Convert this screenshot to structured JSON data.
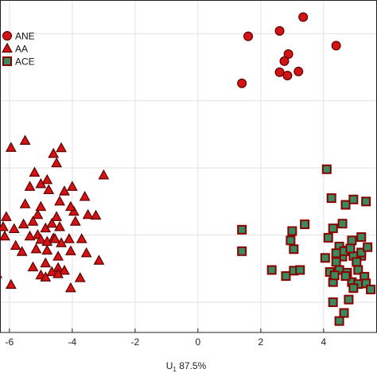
{
  "chart_data": {
    "type": "scatter",
    "title": "",
    "xlabel": {
      "base": "U",
      "subscript": "1",
      "suffix": "  87.5%"
    },
    "ylabel": "",
    "xlim": [
      -6.3,
      5.7
    ],
    "ylim": [
      -4.9,
      5.0
    ],
    "x_ticks": [
      -6,
      -4,
      -2,
      0,
      2,
      4
    ],
    "x_tick_labels": [
      "-6",
      "-4",
      "-2",
      "0",
      "2",
      "4"
    ],
    "y_grid_values": [
      4,
      2,
      0,
      -2,
      -4
    ],
    "grid": true,
    "legend": "top-left",
    "series": [
      {
        "name": "ANE",
        "marker": "circle",
        "fill": "#d41414",
        "stroke": "#5a0000",
        "points": [
          [
            3.35,
            4.49
          ],
          [
            1.6,
            3.92
          ],
          [
            2.6,
            4.08
          ],
          [
            4.4,
            3.64
          ],
          [
            2.88,
            3.39
          ],
          [
            2.75,
            3.18
          ],
          [
            2.6,
            2.85
          ],
          [
            2.85,
            2.75
          ],
          [
            3.2,
            2.87
          ],
          [
            1.4,
            2.52
          ]
        ]
      },
      {
        "name": "AA",
        "marker": "triangle",
        "fill": "#d41414",
        "stroke": "#5a0000",
        "points": [
          [
            -5.5,
            0.81
          ],
          [
            -4.35,
            0.59
          ],
          [
            -4.6,
            0.42
          ],
          [
            -5.95,
            0.6
          ],
          [
            -4.5,
            0.14
          ],
          [
            -5.2,
            -0.14
          ],
          [
            -3.0,
            -0.22
          ],
          [
            -4.0,
            -0.56
          ],
          [
            -5.0,
            -0.48
          ],
          [
            -4.8,
            -0.36
          ],
          [
            -3.6,
            -0.86
          ],
          [
            -4.25,
            -0.7
          ],
          [
            -4.75,
            -0.66
          ],
          [
            -5.35,
            -0.56
          ],
          [
            -4.4,
            -1.0
          ],
          [
            -6.1,
            -1.46
          ],
          [
            -5.1,
            -1.4
          ],
          [
            -4.5,
            -1.46
          ],
          [
            -3.95,
            -1.3
          ],
          [
            -3.5,
            -1.4
          ],
          [
            -3.25,
            -1.42
          ],
          [
            -4.05,
            -1.16
          ],
          [
            -5.0,
            -1.16
          ],
          [
            -5.5,
            -1.08
          ],
          [
            -4.85,
            -1.8
          ],
          [
            -5.25,
            -1.6
          ],
          [
            -5.55,
            -1.68
          ],
          [
            -4.65,
            -1.66
          ],
          [
            -4.4,
            -1.76
          ],
          [
            -3.9,
            -1.6
          ],
          [
            -5.85,
            -1.82
          ],
          [
            -6.2,
            -1.76
          ],
          [
            -5.1,
            -2.0
          ],
          [
            -4.6,
            -2.1
          ],
          [
            -5.8,
            -2.32
          ],
          [
            -5.35,
            -2.04
          ],
          [
            -5.0,
            -2.14
          ],
          [
            -4.8,
            -2.2
          ],
          [
            -4.55,
            -2.12
          ],
          [
            -4.35,
            -2.24
          ],
          [
            -4.1,
            -2.12
          ],
          [
            -3.7,
            -2.12
          ],
          [
            -6.15,
            -2.04
          ],
          [
            -5.6,
            -2.5
          ],
          [
            -5.15,
            -2.42
          ],
          [
            -4.8,
            -2.46
          ],
          [
            -4.45,
            -2.64
          ],
          [
            -4.05,
            -2.48
          ],
          [
            -3.55,
            -2.54
          ],
          [
            -3.15,
            -2.76
          ],
          [
            -4.85,
            -2.84
          ],
          [
            -4.45,
            -2.98
          ],
          [
            -5.0,
            -3.2
          ],
          [
            -4.65,
            -3.1
          ],
          [
            -4.25,
            -3.06
          ],
          [
            -3.75,
            -3.28
          ],
          [
            -6.4,
            -3.16
          ],
          [
            -5.95,
            -3.48
          ],
          [
            -4.85,
            -3.26
          ],
          [
            -4.05,
            -3.58
          ],
          [
            -5.25,
            -2.96
          ],
          [
            -4.45,
            -3.16
          ]
        ]
      },
      {
        "name": "ACE",
        "marker": "square",
        "fill": "#3a8a60",
        "stroke": "#8a0000",
        "points": [
          [
            1.4,
            -1.84
          ],
          [
            1.4,
            -2.48
          ],
          [
            2.35,
            -3.04
          ],
          [
            2.8,
            -3.22
          ],
          [
            3.05,
            -3.06
          ],
          [
            3.25,
            -3.04
          ],
          [
            3.05,
            -2.42
          ],
          [
            2.95,
            -2.16
          ],
          [
            3.0,
            -1.88
          ],
          [
            3.4,
            -1.68
          ],
          [
            4.3,
            -1.8
          ],
          [
            4.6,
            -1.66
          ],
          [
            4.75,
            -2.46
          ],
          [
            4.95,
            -2.62
          ],
          [
            4.6,
            -2.64
          ],
          [
            4.4,
            -2.8
          ],
          [
            4.2,
            -3.1
          ],
          [
            4.5,
            -3.04
          ],
          [
            4.75,
            -3.12
          ],
          [
            5.1,
            -3.04
          ],
          [
            5.3,
            -3.24
          ],
          [
            4.3,
            -3.4
          ],
          [
            4.9,
            -3.4
          ],
          [
            5.1,
            -3.46
          ],
          [
            5.35,
            -3.44
          ],
          [
            4.95,
            -3.58
          ],
          [
            5.5,
            -3.62
          ],
          [
            4.8,
            -3.92
          ],
          [
            4.3,
            -4.0
          ],
          [
            4.65,
            -4.32
          ],
          [
            4.5,
            -4.56
          ],
          [
            4.15,
            -2.08
          ],
          [
            4.5,
            -2.34
          ],
          [
            4.65,
            -2.48
          ],
          [
            4.9,
            -2.16
          ],
          [
            5.2,
            -2.06
          ],
          [
            4.7,
            -1.1
          ],
          [
            4.25,
            -0.9
          ],
          [
            4.95,
            -0.94
          ],
          [
            5.35,
            -1.0
          ],
          [
            4.1,
            -0.04
          ],
          [
            4.05,
            -2.68
          ],
          [
            4.4,
            -2.54
          ],
          [
            4.85,
            -2.4
          ],
          [
            5.2,
            -2.62
          ],
          [
            5.05,
            -2.8
          ],
          [
            4.35,
            -3.2
          ],
          [
            4.7,
            -3.22
          ],
          [
            5.2,
            -2.52
          ],
          [
            5.4,
            -2.36
          ]
        ]
      }
    ]
  }
}
